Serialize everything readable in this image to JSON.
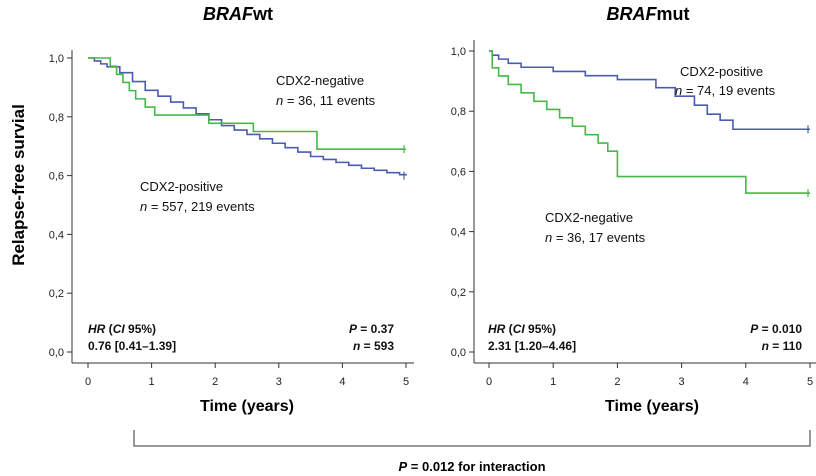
{
  "chart_data": [
    {
      "type": "line",
      "title_italic": "BRAF",
      "title_rest": "wt",
      "xlabel": "Time (years)",
      "ylabel": "Relapse-free survial",
      "xlim": [
        0,
        5
      ],
      "ylim": [
        0,
        1
      ],
      "x_ticks": [
        "0",
        "1",
        "2",
        "3",
        "4",
        "5"
      ],
      "y_ticks": [
        "0,0",
        "0,2",
        "0,4",
        "0,6",
        "0,8",
        "1,0"
      ],
      "grid": false,
      "series": [
        {
          "name": "CDX2-positive",
          "color": "#4a5cb0",
          "x": [
            0,
            0.1,
            0.2,
            0.3,
            0.5,
            0.7,
            0.9,
            1.1,
            1.3,
            1.5,
            1.7,
            1.9,
            2.1,
            2.3,
            2.5,
            2.7,
            2.9,
            3.1,
            3.3,
            3.5,
            3.7,
            3.9,
            4.1,
            4.3,
            4.5,
            4.7,
            4.9,
            5.0
          ],
          "y": [
            1.0,
            0.99,
            0.98,
            0.97,
            0.95,
            0.92,
            0.89,
            0.87,
            0.85,
            0.83,
            0.81,
            0.79,
            0.77,
            0.755,
            0.74,
            0.725,
            0.71,
            0.695,
            0.68,
            0.665,
            0.655,
            0.645,
            0.635,
            0.625,
            0.618,
            0.61,
            0.603,
            0.6
          ]
        },
        {
          "name": "CDX2-negative",
          "color": "#45b84a",
          "x": [
            0,
            0.25,
            0.35,
            0.45,
            0.55,
            0.65,
            0.75,
            0.9,
            1.05,
            1.15,
            1.3,
            1.4,
            1.9,
            2.6,
            3.6,
            5.0
          ],
          "y": [
            1.0,
            1.0,
            0.972,
            0.944,
            0.917,
            0.889,
            0.861,
            0.833,
            0.806,
            0.806,
            0.806,
            0.806,
            0.778,
            0.75,
            0.69,
            0.69
          ]
        }
      ],
      "labels": {
        "neg_title": "CDX2-negative",
        "neg_n": "n",
        "neg_rest": " = 36, 11 events",
        "pos_title": "CDX2-positive",
        "pos_n": "n",
        "pos_rest": " = 557, 219 events"
      },
      "stats": {
        "hr_label": "HR",
        "ci_open": " (",
        "ci_label": "CI",
        "ci_close": " 95%)",
        "hr_value": "0.76 [0.41–1.39]",
        "p_label": "P",
        "p_value": " = 0.37",
        "n_label": "n",
        "n_value": " = 593"
      }
    },
    {
      "type": "line",
      "title_italic": "BRAF",
      "title_rest": "mut",
      "xlabel": "Time (years)",
      "ylabel": "",
      "xlim": [
        0,
        5
      ],
      "ylim": [
        0,
        1
      ],
      "x_ticks": [
        "0",
        "1",
        "2",
        "3",
        "4",
        "5"
      ],
      "y_ticks": [
        "0,0",
        "0,2",
        "0,4",
        "0,6",
        "0,8",
        "1,0"
      ],
      "grid": false,
      "series": [
        {
          "name": "CDX2-positive",
          "color": "#4a5cb0",
          "x": [
            0,
            0.05,
            0.15,
            0.3,
            0.5,
            1.0,
            1.5,
            2.0,
            2.6,
            2.9,
            3.2,
            3.4,
            3.6,
            3.8,
            5.0
          ],
          "y": [
            1.0,
            0.986,
            0.973,
            0.959,
            0.946,
            0.932,
            0.918,
            0.905,
            0.878,
            0.85,
            0.82,
            0.79,
            0.77,
            0.74,
            0.74
          ]
        },
        {
          "name": "CDX2-negative",
          "color": "#45b84a",
          "x": [
            0,
            0.05,
            0.15,
            0.3,
            0.5,
            0.7,
            0.9,
            1.1,
            1.3,
            1.5,
            1.7,
            1.85,
            2.0,
            2.5,
            3.0,
            4.0,
            5.0
          ],
          "y": [
            1.0,
            0.944,
            0.917,
            0.889,
            0.861,
            0.833,
            0.806,
            0.778,
            0.75,
            0.722,
            0.694,
            0.667,
            0.583,
            0.583,
            0.583,
            0.528,
            0.528
          ]
        }
      ],
      "labels": {
        "neg_title": "CDX2-negative",
        "neg_n": "n",
        "neg_rest": " = 36, 17 events",
        "pos_title": "CDX2-positive",
        "pos_n": "n",
        "pos_rest": " = 74, 19 events"
      },
      "stats": {
        "hr_label": "HR",
        "ci_open": " (",
        "ci_label": "CI",
        "ci_close": " 95%)",
        "hr_value": "2.31 [1.20–4.46]",
        "p_label": "P",
        "p_value": " = 0.010",
        "n_label": "n",
        "n_value": " = 110"
      }
    }
  ],
  "interaction": {
    "p_label": "P",
    "text": " = 0.012 for interaction"
  }
}
